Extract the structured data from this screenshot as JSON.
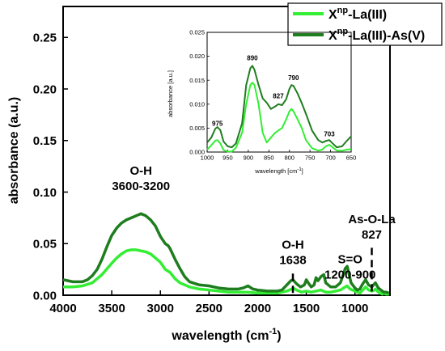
{
  "chart_data": [
    {
      "type": "line",
      "xlabel": "wavelength (cm",
      "xlabel_sup": "-1",
      "xlabel_close": ")",
      "ylabel": "absorbance (a.u.)",
      "xlim": [
        4000,
        640
      ],
      "ylim": [
        0,
        0.28
      ],
      "x_reversed": true,
      "xticks": [
        "4000",
        "3500",
        "3000",
        "2500",
        "2000",
        "1500",
        "1000"
      ],
      "xtick_values": [
        4000,
        3500,
        3000,
        2500,
        2000,
        1500,
        1000
      ],
      "yticks": [
        "0.00",
        "0.05",
        "0.10",
        "0.15",
        "0.20",
        "0.25"
      ],
      "ytick_values": [
        0,
        0.05,
        0.1,
        0.15,
        0.2,
        0.25
      ],
      "legend": {
        "placement": "top-right",
        "entries": [
          {
            "base": "X",
            "sup": "np",
            "rest": "-La(III)",
            "color": "#33ee33"
          },
          {
            "base": "X",
            "sup": "np",
            "rest": "-La(III)-As(V)",
            "color": "#1e7d1e"
          }
        ]
      },
      "series": [
        {
          "color": "#33ee33",
          "points": [
            [
              4000,
              0.008
            ],
            [
              3900,
              0.008
            ],
            [
              3800,
              0.009
            ],
            [
              3700,
              0.012
            ],
            [
              3600,
              0.02
            ],
            [
              3500,
              0.031
            ],
            [
              3450,
              0.036
            ],
            [
              3400,
              0.04
            ],
            [
              3350,
              0.043
            ],
            [
              3300,
              0.044
            ],
            [
              3250,
              0.044
            ],
            [
              3200,
              0.043
            ],
            [
              3150,
              0.042
            ],
            [
              3100,
              0.04
            ],
            [
              3050,
              0.036
            ],
            [
              3000,
              0.032
            ],
            [
              2950,
              0.025
            ],
            [
              2900,
              0.022
            ],
            [
              2850,
              0.016
            ],
            [
              2800,
              0.012
            ],
            [
              2700,
              0.008
            ],
            [
              2600,
              0.006
            ],
            [
              2500,
              0.005
            ],
            [
              2400,
              0.004
            ],
            [
              2300,
              0.003
            ],
            [
              2200,
              0.003
            ],
            [
              2100,
              0.003
            ],
            [
              2000,
              0.002
            ],
            [
              1900,
              0.002
            ],
            [
              1800,
              0.002
            ],
            [
              1750,
              0.003
            ],
            [
              1700,
              0.004
            ],
            [
              1650,
              0.006
            ],
            [
              1638,
              0.007
            ],
            [
              1600,
              0.005
            ],
            [
              1550,
              0.003
            ],
            [
              1500,
              0.004
            ],
            [
              1450,
              0.003
            ],
            [
              1400,
              0.004
            ],
            [
              1350,
              0.005
            ],
            [
              1300,
              0.003
            ],
            [
              1250,
              0.003
            ],
            [
              1200,
              0.004
            ],
            [
              1150,
              0.005
            ],
            [
              1100,
              0.008
            ],
            [
              1080,
              0.009
            ],
            [
              1050,
              0.006
            ],
            [
              1000,
              0.004
            ],
            [
              975,
              0.003
            ],
            [
              950,
              0.002
            ],
            [
              900,
              0.007
            ],
            [
              890,
              0.008
            ],
            [
              860,
              0.005
            ],
            [
              827,
              0.004
            ],
            [
              800,
              0.005
            ],
            [
              790,
              0.006
            ],
            [
              760,
              0.003
            ],
            [
              720,
              0.001
            ],
            [
              703,
              0.002
            ],
            [
              680,
              0.001
            ],
            [
              650,
              0.001
            ]
          ]
        },
        {
          "color": "#1e7d1e",
          "points": [
            [
              4000,
              0.015
            ],
            [
              3900,
              0.013
            ],
            [
              3800,
              0.013
            ],
            [
              3750,
              0.015
            ],
            [
              3700,
              0.019
            ],
            [
              3650,
              0.025
            ],
            [
              3600,
              0.035
            ],
            [
              3550,
              0.047
            ],
            [
              3500,
              0.058
            ],
            [
              3450,
              0.065
            ],
            [
              3400,
              0.07
            ],
            [
              3350,
              0.073
            ],
            [
              3300,
              0.075
            ],
            [
              3250,
              0.077
            ],
            [
              3200,
              0.079
            ],
            [
              3150,
              0.077
            ],
            [
              3100,
              0.073
            ],
            [
              3050,
              0.067
            ],
            [
              3000,
              0.057
            ],
            [
              2950,
              0.05
            ],
            [
              2920,
              0.048
            ],
            [
              2900,
              0.045
            ],
            [
              2850,
              0.035
            ],
            [
              2800,
              0.026
            ],
            [
              2750,
              0.018
            ],
            [
              2700,
              0.013
            ],
            [
              2600,
              0.01
            ],
            [
              2500,
              0.009
            ],
            [
              2400,
              0.007
            ],
            [
              2300,
              0.006
            ],
            [
              2200,
              0.006
            ],
            [
              2150,
              0.007
            ],
            [
              2100,
              0.009
            ],
            [
              2050,
              0.006
            ],
            [
              2000,
              0.005
            ],
            [
              1900,
              0.004
            ],
            [
              1800,
              0.004
            ],
            [
              1750,
              0.005
            ],
            [
              1700,
              0.01
            ],
            [
              1660,
              0.014
            ],
            [
              1638,
              0.015
            ],
            [
              1600,
              0.011
            ],
            [
              1560,
              0.008
            ],
            [
              1520,
              0.01
            ],
            [
              1500,
              0.015
            ],
            [
              1480,
              0.012
            ],
            [
              1450,
              0.008
            ],
            [
              1420,
              0.01
            ],
            [
              1400,
              0.017
            ],
            [
              1380,
              0.014
            ],
            [
              1350,
              0.018
            ],
            [
              1320,
              0.02
            ],
            [
              1300,
              0.012
            ],
            [
              1250,
              0.008
            ],
            [
              1200,
              0.008
            ],
            [
              1150,
              0.012
            ],
            [
              1120,
              0.02
            ],
            [
              1100,
              0.026
            ],
            [
              1080,
              0.028
            ],
            [
              1060,
              0.02
            ],
            [
              1040,
              0.012
            ],
            [
              1000,
              0.007
            ],
            [
              975,
              0.005
            ],
            [
              950,
              0.006
            ],
            [
              920,
              0.011
            ],
            [
              890,
              0.015
            ],
            [
              860,
              0.01
            ],
            [
              827,
              0.008
            ],
            [
              800,
              0.011
            ],
            [
              790,
              0.012
            ],
            [
              760,
              0.007
            ],
            [
              720,
              0.004
            ],
            [
              703,
              0.003
            ],
            [
              680,
              0.003
            ],
            [
              650,
              0.002
            ]
          ]
        }
      ],
      "annotations": [
        {
          "lines": [
            "O-H",
            "3600-3200"
          ],
          "x": 3200,
          "y": 0.117
        },
        {
          "lines": [
            "O-H",
            "1638"
          ],
          "x": 1638,
          "y": 0.045,
          "marker_x": 1638,
          "marker_top": 0.021
        },
        {
          "lines": [
            "S=O",
            "1200-900"
          ],
          "x": 1050,
          "y": 0.031
        },
        {
          "lines": [
            "As-O-La",
            "827"
          ],
          "x": 827,
          "y": 0.07,
          "marker_x": 827,
          "marker_top": 0.046
        }
      ]
    },
    {
      "type": "line",
      "inset": true,
      "xlabel": "wavelength [cm",
      "xlabel_sup": "-1",
      "xlabel_close": "]",
      "ylabel": "absorbance [a.u.]",
      "xlim": [
        1000,
        650
      ],
      "ylim": [
        0,
        0.025
      ],
      "x_reversed": true,
      "xticks": [
        "1000",
        "950",
        "900",
        "850",
        "800",
        "750",
        "700",
        "650"
      ],
      "xtick_values": [
        1000,
        950,
        900,
        850,
        800,
        750,
        700,
        650
      ],
      "yticks": [
        "0.000",
        "0.005",
        "0.010",
        "0.015",
        "0.020",
        "0.025"
      ],
      "ytick_values": [
        0,
        0.005,
        0.01,
        0.015,
        0.02,
        0.025
      ],
      "series": [
        {
          "color": "#33ee33",
          "points": [
            [
              1000,
              0.0005
            ],
            [
              990,
              0.0014
            ],
            [
              980,
              0.0024
            ],
            [
              975,
              0.0025
            ],
            [
              968,
              0.0018
            ],
            [
              960,
              0.0004
            ],
            [
              950,
              0.0001
            ],
            [
              940,
              0.0001
            ],
            [
              930,
              0.0009
            ],
            [
              915,
              0.004
            ],
            [
              905,
              0.01
            ],
            [
              895,
              0.014
            ],
            [
              890,
              0.0145
            ],
            [
              885,
              0.014
            ],
            [
              875,
              0.01
            ],
            [
              865,
              0.004
            ],
            [
              855,
              0.002
            ],
            [
              845,
              0.003
            ],
            [
              835,
              0.004
            ],
            [
              827,
              0.0045
            ],
            [
              818,
              0.005
            ],
            [
              808,
              0.0068
            ],
            [
              800,
              0.0085
            ],
            [
              795,
              0.009
            ],
            [
              790,
              0.0085
            ],
            [
              780,
              0.0068
            ],
            [
              770,
              0.005
            ],
            [
              760,
              0.0025
            ],
            [
              745,
              0.0008
            ],
            [
              730,
              0.0003
            ],
            [
              720,
              0.0005
            ],
            [
              712,
              0.0012
            ],
            [
              703,
              0.0015
            ],
            [
              695,
              0.001
            ],
            [
              685,
              0.0003
            ],
            [
              670,
              0.0003
            ],
            [
              660,
              0.0005
            ],
            [
              650,
              0.0006
            ]
          ]
        },
        {
          "color": "#1e7d1e",
          "points": [
            [
              1000,
              0.002
            ],
            [
              990,
              0.003
            ],
            [
              980,
              0.0049
            ],
            [
              975,
              0.0052
            ],
            [
              968,
              0.0046
            ],
            [
              960,
              0.0022
            ],
            [
              950,
              0.0012
            ],
            [
              940,
              0.001
            ],
            [
              930,
              0.0018
            ],
            [
              915,
              0.006
            ],
            [
              905,
              0.014
            ],
            [
              895,
              0.0175
            ],
            [
              890,
              0.018
            ],
            [
              885,
              0.0172
            ],
            [
              875,
              0.014
            ],
            [
              865,
              0.0112
            ],
            [
              855,
              0.0103
            ],
            [
              845,
              0.009
            ],
            [
              835,
              0.0095
            ],
            [
              827,
              0.01
            ],
            [
              818,
              0.0098
            ],
            [
              808,
              0.011
            ],
            [
              800,
              0.0132
            ],
            [
              795,
              0.014
            ],
            [
              790,
              0.0138
            ],
            [
              780,
              0.0122
            ],
            [
              770,
              0.0102
            ],
            [
              760,
              0.008
            ],
            [
              745,
              0.0045
            ],
            [
              730,
              0.0025
            ],
            [
              720,
              0.002
            ],
            [
              712,
              0.0023
            ],
            [
              703,
              0.0025
            ],
            [
              695,
              0.0018
            ],
            [
              685,
              0.001
            ],
            [
              672,
              0.0012
            ],
            [
              662,
              0.0022
            ],
            [
              650,
              0.0033
            ]
          ]
        }
      ],
      "peak_labels": [
        {
          "text": "975",
          "x": 975,
          "y": 0.0055
        },
        {
          "text": "890",
          "x": 890,
          "y": 0.0192
        },
        {
          "text": "827",
          "x": 827,
          "y": 0.0112
        },
        {
          "text": "790",
          "x": 790,
          "y": 0.015
        },
        {
          "text": "703",
          "x": 703,
          "y": 0.0033
        }
      ]
    }
  ]
}
